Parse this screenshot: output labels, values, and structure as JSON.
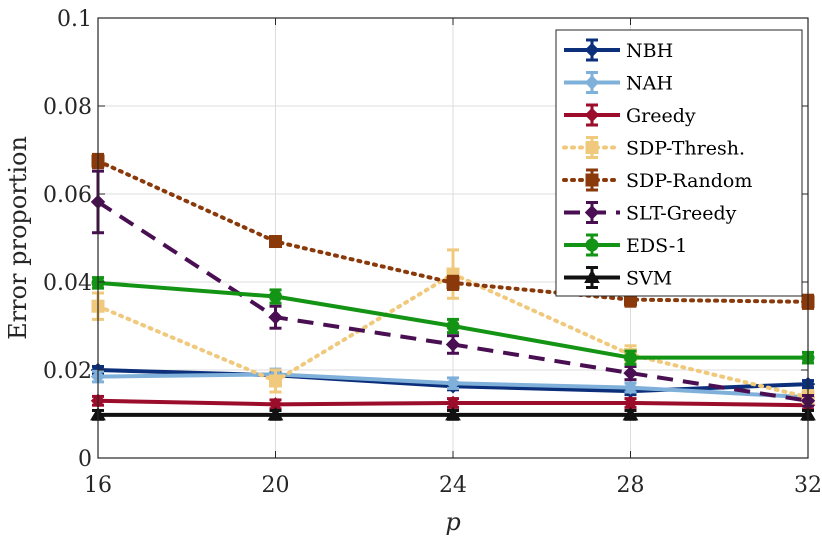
{
  "chart_data": {
    "type": "line",
    "title": "",
    "xlabel": "p",
    "ylabel": "Error proportion",
    "x": [
      16,
      20,
      24,
      28,
      32
    ],
    "xlim": [
      16,
      32
    ],
    "ylim": [
      0,
      0.1
    ],
    "xticks": [
      "16",
      "20",
      "24",
      "28",
      "32"
    ],
    "yticks": [
      "0",
      "0.02",
      "0.04",
      "0.06",
      "0.08",
      "0.1"
    ],
    "ytick_values": [
      0,
      0.02,
      0.04,
      0.06,
      0.08,
      0.1
    ],
    "grid": true,
    "legend_position": "top-right",
    "series": [
      {
        "name": "NBH",
        "color": "#0b2f7a",
        "dash": "solid",
        "marker": "diamond",
        "values": [
          0.02,
          0.0188,
          0.0163,
          0.0152,
          0.0168
        ],
        "errors": [
          0.0008,
          0.0008,
          0.0008,
          0.0008,
          0.0008
        ]
      },
      {
        "name": "NAH",
        "color": "#7fb0da",
        "dash": "solid",
        "marker": "diamond",
        "values": [
          0.0185,
          0.019,
          0.017,
          0.016,
          0.0138
        ],
        "errors": [
          0.0012,
          0.0012,
          0.0012,
          0.001,
          0.001
        ]
      },
      {
        "name": "Greedy",
        "color": "#9b0d2a",
        "dash": "solid",
        "marker": "diamond",
        "values": [
          0.013,
          0.0122,
          0.0125,
          0.0125,
          0.012
        ],
        "errors": [
          0.001,
          0.001,
          0.001,
          0.001,
          0.001
        ]
      },
      {
        "name": "SDP-Thresh.",
        "color": "#f0c97c",
        "dash": "dot",
        "marker": "square",
        "values": [
          0.0345,
          0.0175,
          0.0418,
          0.0235,
          0.0138
        ],
        "errors": [
          0.003,
          0.0025,
          0.0055,
          0.002,
          0.0015
        ]
      },
      {
        "name": "SDP-Random",
        "color": "#8a3a0a",
        "dash": "dot",
        "marker": "square",
        "values": [
          0.0675,
          0.0492,
          0.0398,
          0.036,
          0.0355
        ],
        "errors": [
          0.0015,
          0.001,
          0.0015,
          0.0015,
          0.0015
        ]
      },
      {
        "name": "SLT-Greedy",
        "color": "#4a0f52",
        "dash": "dash",
        "marker": "diamond",
        "values": [
          0.0582,
          0.032,
          0.0258,
          0.0193,
          0.013
        ],
        "errors": [
          0.007,
          0.0025,
          0.002,
          0.0015,
          0.0012
        ]
      },
      {
        "name": "EDS-1",
        "color": "#149414",
        "dash": "solid",
        "marker": "circle",
        "values": [
          0.0398,
          0.0367,
          0.03,
          0.0228,
          0.0228
        ],
        "errors": [
          0.0012,
          0.0015,
          0.0015,
          0.0015,
          0.0012
        ]
      },
      {
        "name": "SVM",
        "color": "#111111",
        "dash": "solid",
        "marker": "triangle",
        "values": [
          0.0098,
          0.0098,
          0.0098,
          0.0098,
          0.0098
        ],
        "errors": [
          0.001,
          0.001,
          0.001,
          0.001,
          0.001
        ]
      }
    ]
  }
}
